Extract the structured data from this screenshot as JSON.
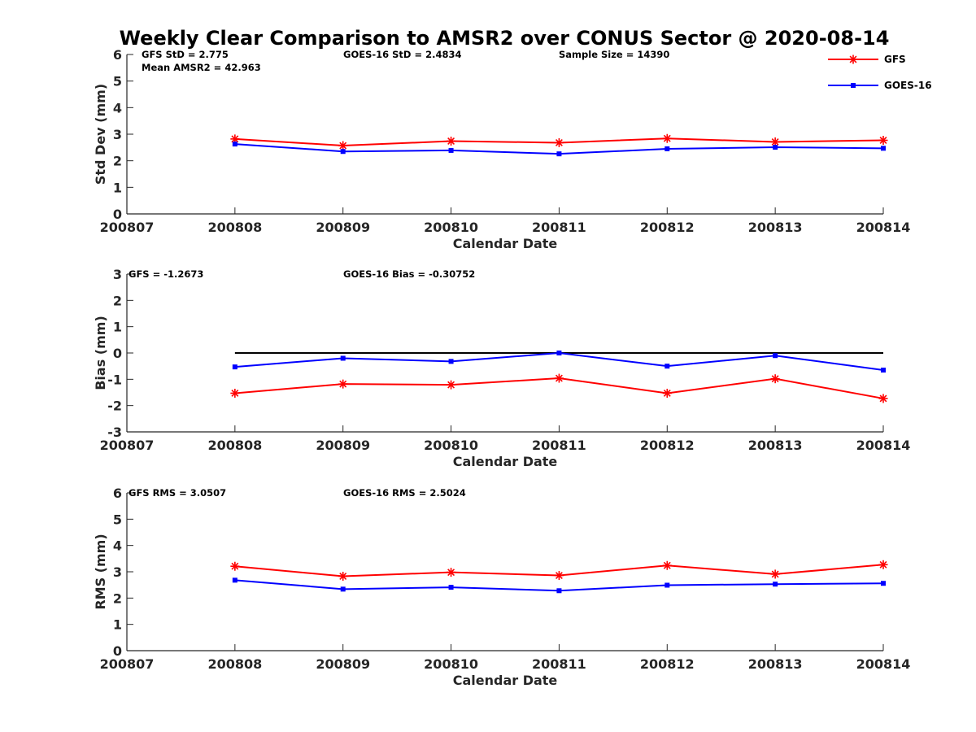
{
  "title": "Weekly Clear Comparison to AMSR2 over CONUS Sector @ 2020-08-14",
  "legend": {
    "placement": "top-right",
    "entries": [
      {
        "label": "GFS",
        "color": "#ff0000",
        "marker": "asterisk"
      },
      {
        "label": "GOES-16",
        "color": "#0000ff",
        "marker": "square"
      }
    ]
  },
  "colors": {
    "gfs": "#ff0000",
    "goes": "#0000ff",
    "zero_line": "#000000",
    "axis": "#262626"
  },
  "chart_data": [
    {
      "type": "line",
      "xlabel": "Calendar Date",
      "ylabel": "Std Dev (mm)",
      "categories": [
        "200807",
        "200808",
        "200809",
        "200810",
        "200811",
        "200812",
        "200813",
        "200814"
      ],
      "ylim": [
        0,
        6
      ],
      "yticks": [
        "0",
        "1",
        "2",
        "3",
        "4",
        "5",
        "6"
      ],
      "grid": false,
      "zero_line": false,
      "series": [
        {
          "name": "GFS",
          "values": [
            null,
            2.82,
            2.57,
            2.74,
            2.68,
            2.84,
            2.71,
            2.77
          ]
        },
        {
          "name": "GOES-16",
          "values": [
            null,
            2.63,
            2.35,
            2.39,
            2.26,
            2.45,
            2.51,
            2.47
          ]
        }
      ],
      "annotations": [
        "GFS StD = 2.775",
        "GOES-16 StD = 2.4834",
        "Sample Size = 14390",
        "Mean AMSR2 = 42.963"
      ]
    },
    {
      "type": "line",
      "xlabel": "Calendar Date",
      "ylabel": "Bias (mm)",
      "categories": [
        "200807",
        "200808",
        "200809",
        "200810",
        "200811",
        "200812",
        "200813",
        "200814"
      ],
      "ylim": [
        -3,
        3
      ],
      "yticks": [
        "-3",
        "-2",
        "-1",
        "0",
        "1",
        "2",
        "3"
      ],
      "grid": false,
      "zero_line": true,
      "series": [
        {
          "name": "GFS",
          "values": [
            null,
            -1.53,
            -1.18,
            -1.21,
            -0.96,
            -1.53,
            -0.98,
            -1.73
          ]
        },
        {
          "name": "GOES-16",
          "values": [
            null,
            -0.53,
            -0.2,
            -0.32,
            0.0,
            -0.5,
            -0.1,
            -0.65
          ]
        }
      ],
      "annotations": [
        "GFS = -1.2673",
        "GOES-16 Bias  = -0.30752"
      ]
    },
    {
      "type": "line",
      "xlabel": "Calendar Date",
      "ylabel": "RMS (mm)",
      "categories": [
        "200807",
        "200808",
        "200809",
        "200810",
        "200811",
        "200812",
        "200813",
        "200814"
      ],
      "ylim": [
        0,
        6
      ],
      "yticks": [
        "0",
        "1",
        "2",
        "3",
        "4",
        "5",
        "6"
      ],
      "grid": false,
      "zero_line": false,
      "series": [
        {
          "name": "GFS",
          "values": [
            null,
            3.21,
            2.83,
            2.98,
            2.86,
            3.24,
            2.91,
            3.27
          ]
        },
        {
          "name": "GOES-16",
          "values": [
            null,
            2.68,
            2.34,
            2.41,
            2.28,
            2.49,
            2.53,
            2.56
          ]
        }
      ],
      "annotations": [
        "GFS RMS = 3.0507",
        "GOES-16 RMS = 2.5024"
      ]
    }
  ]
}
